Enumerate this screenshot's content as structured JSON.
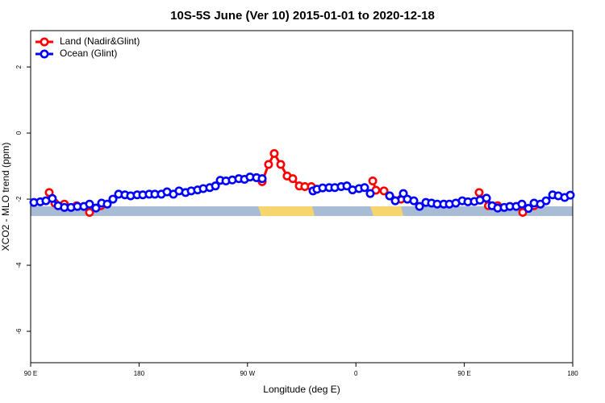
{
  "chart_data": {
    "type": "line",
    "title": "10S-5S June (Ver 10)   2015-01-01 to 2020-12-18",
    "xlabel": "Longitude (deg E)",
    "ylabel": "XCO2 - MLO trend (ppm)",
    "xlim": [
      90,
      540
    ],
    "xticks": [
      {
        "value": 90,
        "label": "90 E"
      },
      {
        "value": 180,
        "label": "180"
      },
      {
        "value": 270,
        "label": "90 W"
      },
      {
        "value": 360,
        "label": "0"
      },
      {
        "value": 450,
        "label": "90 E"
      },
      {
        "value": 540,
        "label": "180"
      }
    ],
    "ylim": [
      -6.95,
      3.1
    ],
    "yticks": [
      -6,
      -4,
      -2,
      0,
      2
    ],
    "legend": "topleft",
    "series": [
      {
        "name": "Land (Nadir&Glint)",
        "color": "#ff0000",
        "x": [
          105.4,
          110.1,
          114,
          118,
          123,
          128.2,
          133,
          138.9,
          144,
          148.3,
          200,
          282.2,
          287.5,
          292.2,
          297.6,
          302.9,
          307.6,
          313,
          317.6,
          323,
          345,
          374,
          376.6,
          383.3,
          388,
          397.4,
          430,
          462.3,
          470,
          477.7,
          490,
          498.5,
          507.9
        ],
        "values": [
          -1.8,
          -2.12,
          null,
          -2.15,
          null,
          -2.2,
          null,
          -2.4,
          null,
          -2.2,
          null,
          -1.47,
          -0.95,
          -0.62,
          -0.95,
          -1.3,
          -1.38,
          -1.6,
          -1.62,
          -1.62,
          null,
          -1.45,
          -1.73,
          -1.75,
          -1.9,
          -2.0,
          null,
          -1.8,
          -2.2,
          -2.2,
          null,
          -2.4,
          -2.2
        ]
      },
      {
        "name": "Ocean (Glint)",
        "color": "#0000ff",
        "x": [
          92.7,
          98,
          102.7,
          108,
          112.8,
          118,
          123.5,
          128.8,
          134.2,
          138.9,
          144.2,
          148.9,
          153.6,
          158.3,
          163,
          168.3,
          173,
          178.4,
          183.1,
          188.4,
          193.1,
          198.5,
          203.2,
          208.5,
          213.2,
          218.6,
          223.3,
          228.6,
          233.3,
          238.7,
          243.4,
          247.4,
          252.1,
          257.4,
          262.8,
          267.5,
          272.1,
          277.5,
          282.2,
          300,
          324.4,
          327.7,
          332.4,
          337.8,
          342.5,
          347.8,
          352.5,
          357.2,
          362.6,
          367.2,
          371.9,
          380,
          388,
          392.7,
          399.4,
          402.7,
          408.1,
          412.8,
          418.1,
          422.8,
          427.5,
          432.9,
          437.6,
          442.9,
          448.3,
          453,
          458.3,
          463,
          468.4,
          473.1,
          477.7,
          483.1,
          487.8,
          493.1,
          497.8,
          503.2,
          507.9,
          513.2,
          517.9,
          523.3,
          528,
          533.3,
          538
        ],
        "values": [
          -2.1,
          -2.08,
          -2.05,
          -1.98,
          -2.2,
          -2.25,
          -2.25,
          -2.22,
          -2.22,
          -2.15,
          -2.27,
          -2.12,
          -2.15,
          -2.0,
          -1.85,
          -1.87,
          -1.9,
          -1.87,
          -1.87,
          -1.85,
          -1.85,
          -1.85,
          -1.78,
          -1.85,
          -1.75,
          -1.8,
          -1.75,
          -1.72,
          -1.68,
          -1.65,
          -1.6,
          -1.43,
          -1.45,
          -1.42,
          -1.38,
          -1.4,
          -1.33,
          -1.35,
          -1.38,
          null,
          -1.75,
          -1.7,
          -1.66,
          -1.65,
          -1.65,
          -1.62,
          -1.6,
          -1.72,
          -1.68,
          -1.65,
          -1.83,
          null,
          -1.9,
          -2.05,
          -1.83,
          -2.0,
          -2.05,
          -2.22,
          -2.1,
          -2.12,
          -2.15,
          -2.15,
          -2.15,
          -2.12,
          -2.05,
          -2.08,
          -2.07,
          -2.03,
          -1.97,
          -2.2,
          -2.27,
          -2.25,
          -2.22,
          -2.22,
          -2.15,
          -2.28,
          -2.12,
          -2.15,
          -2.05,
          -1.87,
          -1.9,
          -1.95,
          -1.88
        ]
      }
    ]
  }
}
